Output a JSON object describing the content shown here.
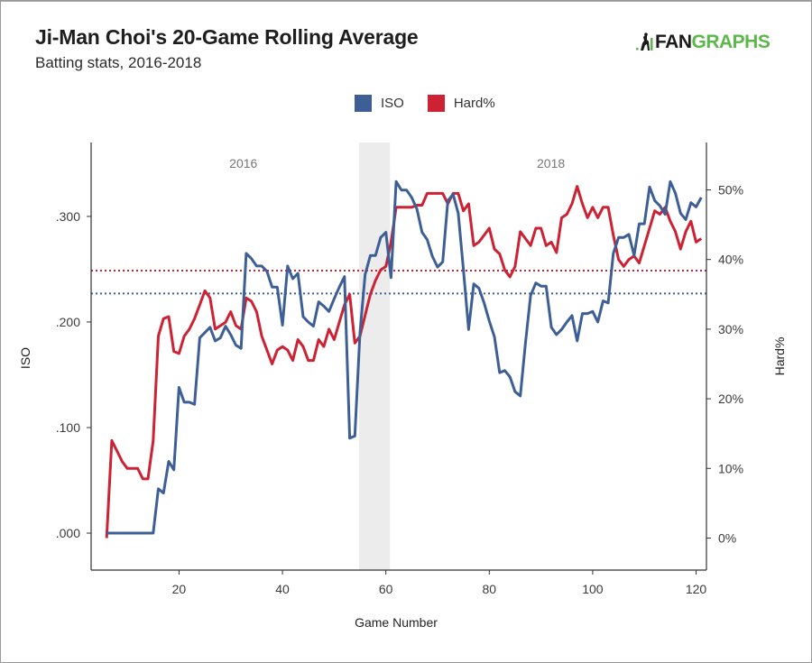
{
  "header": {
    "title": "Ji-Man Choi's 20-Game Rolling Average",
    "subtitle": "Batting stats, 2016-2018",
    "logo_left": "FAN",
    "logo_right": "GRAPHS"
  },
  "colors": {
    "iso": "#3d5f96",
    "hard": "#cc2233",
    "band": "#ececec",
    "axis": "#333333",
    "logo_green": "#5cb84a"
  },
  "chart_data": {
    "type": "line",
    "title": "Ji-Man Choi's 20-Game Rolling Average",
    "subtitle": "Batting stats, 2016-2018",
    "xlabel": "Game Number",
    "ylabel_left": "ISO",
    "ylabel_right": "Hard%",
    "xlim": [
      3,
      122
    ],
    "ylim_left": [
      -0.035,
      0.37
    ],
    "ylim_right": [
      -4.6,
      56.8
    ],
    "x_ticks": [
      20,
      40,
      60,
      80,
      100,
      120
    ],
    "x_tick_labels": [
      "20",
      "40",
      "60",
      "80",
      "100",
      "120"
    ],
    "y_left_ticks": [
      0,
      0.1,
      0.2,
      0.3
    ],
    "y_left_tick_labels": [
      ".000",
      ".100",
      ".200",
      ".300"
    ],
    "y_right_ticks": [
      0,
      10,
      20,
      30,
      40,
      50
    ],
    "y_right_tick_labels": [
      "0%",
      "10%",
      "20%",
      "30%",
      "40%",
      "50%"
    ],
    "legend": {
      "position": "top-center",
      "entries": [
        "ISO",
        "Hard%"
      ]
    },
    "grid": false,
    "annotations": [
      {
        "text": "2016",
        "x": 30
      },
      {
        "text": "2018",
        "x": 90
      }
    ],
    "shaded_region": {
      "x_start": 54.8,
      "x_end": 60.8
    },
    "reference_lines": [
      {
        "series": "Hard%",
        "axis": "right",
        "value": 38.4,
        "style": "dotted"
      },
      {
        "series": "ISO",
        "axis": "left",
        "value": 0.227,
        "style": "dotted"
      }
    ],
    "series": [
      {
        "name": "ISO",
        "axis": "left",
        "x_start": 6,
        "values": [
          0,
          0,
          0,
          0,
          0,
          0,
          0,
          0,
          0,
          0,
          0.042,
          0.038,
          0.068,
          0.06,
          0.138,
          0.124,
          0.124,
          0.122,
          0.185,
          0.19,
          0.195,
          0.182,
          0.185,
          0.196,
          0.188,
          0.178,
          0.175,
          0.265,
          0.26,
          0.253,
          0.253,
          0.248,
          0.233,
          0.233,
          0.197,
          0.253,
          0.241,
          0.246,
          0.205,
          0.2,
          0.196,
          0.219,
          0.215,
          0.21,
          0.222,
          0.233,
          0.243,
          0.09,
          0.092,
          0.19,
          0.245,
          0.263,
          0.263,
          0.28,
          0.285,
          0.242,
          0.333,
          0.325,
          0.325,
          0.318,
          0.307,
          0.285,
          0.278,
          0.262,
          0.252,
          0.257,
          0.315,
          0.321,
          0.303,
          0.25,
          0.193,
          0.236,
          0.232,
          0.218,
          0.201,
          0.186,
          0.152,
          0.154,
          0.148,
          0.134,
          0.13,
          0.18,
          0.225,
          0.237,
          0.234,
          0.234,
          0.195,
          0.188,
          0.193,
          0.2,
          0.206,
          0.182,
          0.208,
          0.208,
          0.21,
          0.2,
          0.22,
          0.218,
          0.265,
          0.28,
          0.28,
          0.283,
          0.263,
          0.293,
          0.293,
          0.328,
          0.315,
          0.31,
          0.302,
          0.333,
          0.322,
          0.303,
          0.297,
          0.313,
          0.309,
          0.318
        ]
      },
      {
        "name": "Hard%",
        "axis": "right",
        "x_start": 6,
        "values": [
          0,
          14,
          12.5,
          11,
          10,
          10,
          10,
          8.5,
          8.5,
          14,
          29,
          31.5,
          31.8,
          26.8,
          26.5,
          29,
          30,
          31.5,
          33.5,
          35.5,
          34.5,
          30,
          30.5,
          31,
          32.5,
          30.5,
          30,
          34.5,
          34,
          32.5,
          29,
          27,
          25,
          27,
          27.5,
          27,
          25.5,
          28.5,
          27.5,
          25.5,
          25.5,
          28.5,
          27.5,
          30,
          28.5,
          31,
          33.5,
          35,
          28,
          29,
          32,
          35,
          37,
          38.5,
          39,
          42.5,
          47.5,
          47.5,
          47.5,
          47.5,
          47.8,
          47.8,
          49.5,
          49.5,
          49.5,
          49.5,
          48,
          49.5,
          49.5,
          47,
          48,
          42,
          42.5,
          43.5,
          44.5,
          41.5,
          40.8,
          38.5,
          37.5,
          39,
          44,
          43,
          42,
          44.5,
          44.5,
          42,
          42.5,
          41,
          46,
          46.5,
          48,
          50.5,
          48,
          46,
          47.5,
          46,
          47.5,
          47.5,
          43.5,
          40,
          39,
          40,
          40.5,
          39.5,
          42,
          44.5,
          47,
          46.5,
          47.5,
          45.5,
          44,
          41.5,
          44,
          45.5,
          42.5,
          43
        ]
      }
    ]
  }
}
